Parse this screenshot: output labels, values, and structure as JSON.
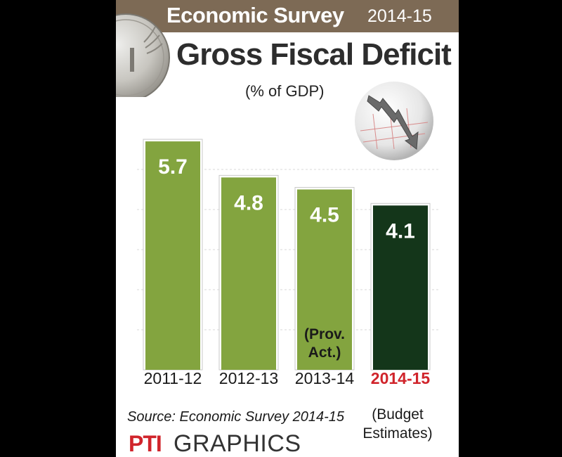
{
  "header": {
    "survey_title": "Economic Survey",
    "survey_year": "2014-15",
    "main_title": "Gross Fiscal Deficit",
    "subtitle": "(% of GDP)"
  },
  "chart_data": {
    "type": "bar",
    "title": "Gross Fiscal Deficit",
    "subtitle": "(% of GDP)",
    "xlabel": "",
    "ylabel": "",
    "ylim": [
      0,
      6
    ],
    "grid": true,
    "categories": [
      "2011-12",
      "2012-13",
      "2013-14",
      "2014-15"
    ],
    "values": [
      5.7,
      4.8,
      4.5,
      4.1
    ],
    "value_labels": [
      "5.7",
      "4.8",
      "4.5",
      "4.1"
    ],
    "highlight_category": "2014-15",
    "bar_notes": {
      "2013-14": [
        "(Prov.",
        "Act.)"
      ]
    },
    "category_notes": {
      "2014-15": [
        "(Budget",
        "Estimates)"
      ]
    },
    "colors": {
      "bar": "#83a43f",
      "bar_highlight": "#14361a",
      "highlight_label": "#d0242b"
    }
  },
  "footer": {
    "source": "Source: Economic Survey 2014-15",
    "logo_text": "PTI",
    "graphics_label": "GRAPHICS"
  },
  "colors": {
    "header_band": "#7d6a55",
    "background": "#ffffff"
  },
  "icons": {
    "coin": "rupee-coin-icon",
    "trend": "falling-trend-icon"
  }
}
